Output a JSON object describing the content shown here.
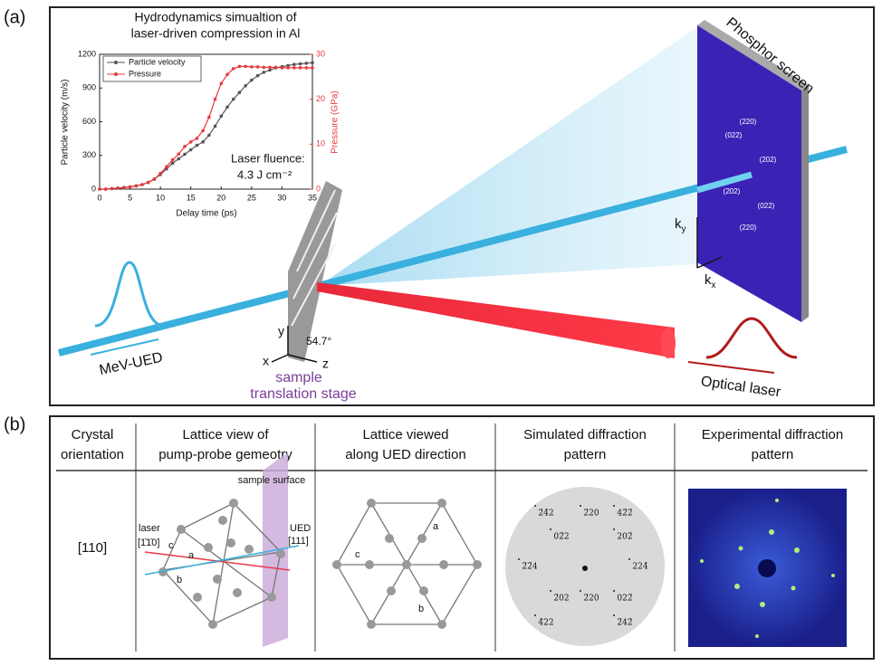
{
  "chart_data": {
    "type": "line",
    "title": [
      "Hydrodynamics simualtion of",
      "laser-driven compression in Al"
    ],
    "x_label": "Delay time (ps)",
    "y_label": "Particle velocity (m/s)",
    "y2_label": "Pressure (GPa)",
    "annotation": [
      "Laser fluence:",
      "4.3 J cm⁻²"
    ],
    "x": [
      0,
      1,
      2,
      3,
      4,
      5,
      6,
      7,
      8,
      9,
      10,
      11,
      12,
      13,
      14,
      15,
      16,
      17,
      18,
      19,
      20,
      21,
      22,
      23,
      24,
      25,
      26,
      27,
      28,
      29,
      30,
      31,
      32,
      33,
      34,
      35
    ],
    "series": [
      {
        "name": "Particle velocity",
        "color": "#555555",
        "values": [
          0,
          0,
          5,
          10,
          15,
          20,
          30,
          40,
          60,
          90,
          130,
          180,
          230,
          270,
          310,
          350,
          390,
          420,
          480,
          560,
          650,
          730,
          800,
          860,
          920,
          970,
          1010,
          1040,
          1060,
          1080,
          1090,
          1100,
          1110,
          1115,
          1120,
          1125
        ]
      },
      {
        "name": "Pressure",
        "color": "#e8383d",
        "axis": "y2",
        "values": [
          0,
          0,
          0.1,
          0.2,
          0.3,
          0.5,
          0.7,
          1,
          1.5,
          2.2,
          3.5,
          5,
          6.5,
          7.8,
          9.5,
          10.5,
          11.3,
          13,
          16,
          20,
          23.5,
          25.5,
          26.8,
          27.3,
          27.3,
          27.2,
          27.2,
          27.1,
          27.1,
          27.1,
          27,
          27,
          27,
          27,
          27,
          27
        ]
      }
    ],
    "xlim": [
      0,
      35
    ],
    "xticks": [
      0,
      5,
      10,
      15,
      20,
      25,
      30,
      35
    ],
    "ylim": [
      0,
      1200
    ],
    "yticks": [
      0,
      300,
      600,
      900,
      1200
    ],
    "y2lim": [
      0,
      30
    ],
    "y2ticks": [
      0,
      10,
      20,
      30
    ],
    "legend": "upper left"
  },
  "panel_a": {
    "label": "(a)",
    "screen_label": "Phosphor screen",
    "spots": [
      "(220)",
      "(022)",
      "(202)",
      "(202)",
      "(022)",
      "(220)"
    ],
    "ky": {
      "base": "k",
      "sub": "y"
    },
    "kx": {
      "base": "k",
      "sub": "x"
    },
    "beam_label": "MeV-UED",
    "stage_label": [
      "sample",
      "translation stage"
    ],
    "laser_label": "Optical laser",
    "axes": {
      "y": "y",
      "x": "x",
      "z": "z",
      "angle": "54.7°"
    }
  },
  "panel_b": {
    "label": "(b)",
    "headers": [
      [
        "Crystal",
        "orientation"
      ],
      [
        "Lattice view of",
        "pump-probe gemeotry"
      ],
      [
        "Lattice viewed",
        "along UED direction"
      ],
      [
        "Simulated diffraction",
        "pattern"
      ],
      [
        "Experimental diffraction",
        "pattern"
      ]
    ],
    "orientation": "[110]",
    "lattice1": {
      "surface": "sample surface",
      "laser": "laser",
      "laser_dir": "[1̄1̄0]",
      "ued": "UED",
      "ued_dir": "[111]",
      "c": "c",
      "a": "a",
      "b": "b"
    },
    "lattice2": {
      "a": "a",
      "c": "c",
      "b": "b"
    },
    "sim_labels": [
      "2̄4̄2",
      "2̄20",
      "42̄2̄",
      "02̄2",
      "202̄",
      "2̄2̄4",
      "224̄",
      "2̄02",
      "022̄",
      "2̄20",
      "4̄22",
      "2̄42̄"
    ]
  }
}
